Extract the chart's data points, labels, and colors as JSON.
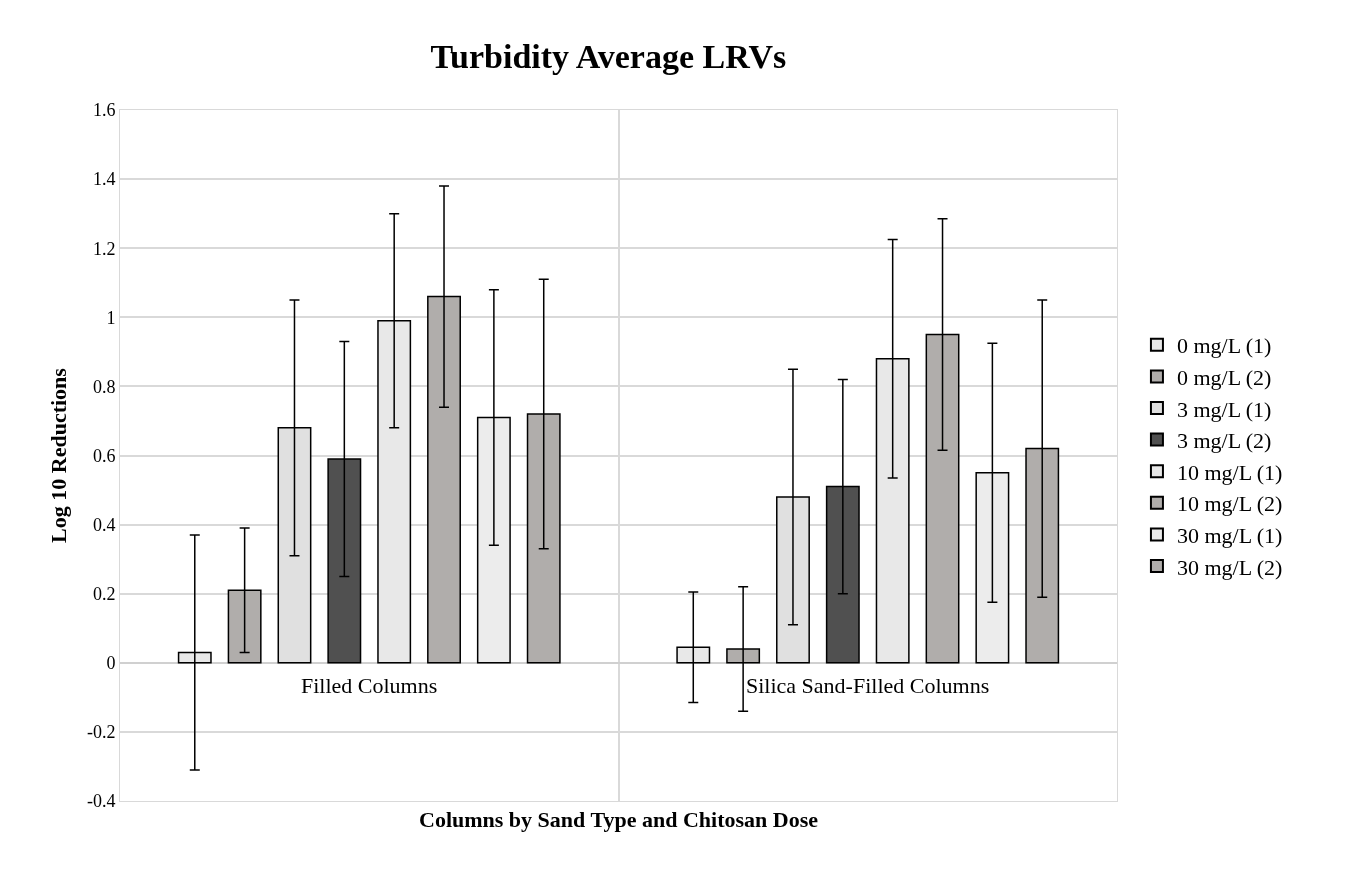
{
  "chart_data": {
    "type": "bar",
    "title": "Turbidity Average LRVs",
    "xlabel": "Columns by Sand Type and Chitosan Dose",
    "ylabel": "Log 10 Reductions",
    "categories": [
      "Filled Columns",
      "Silica Sand-Filled Columns"
    ],
    "series": [
      {
        "name": "0 mg/L (1)",
        "color": "#e8e8e8",
        "values": [
          0.03,
          0.045
        ],
        "errors": [
          0.34,
          0.16
        ]
      },
      {
        "name": "0 mg/L (2)",
        "color": "#b0adab",
        "values": [
          0.21,
          0.04
        ],
        "errors": [
          0.18,
          0.18
        ]
      },
      {
        "name": "3 mg/L (1)",
        "color": "#e0e0e0",
        "values": [
          0.68,
          0.48
        ],
        "errors": [
          0.37,
          0.37
        ]
      },
      {
        "name": "3 mg/L (2)",
        "color": "#505050",
        "values": [
          0.59,
          0.51
        ],
        "errors": [
          0.34,
          0.31
        ]
      },
      {
        "name": "10 mg/L (1)",
        "color": "#e8e8e8",
        "values": [
          0.99,
          0.88
        ],
        "errors": [
          0.31,
          0.345
        ]
      },
      {
        "name": "10 mg/L (2)",
        "color": "#b0adab",
        "values": [
          1.06,
          0.95
        ],
        "errors": [
          0.32,
          0.335
        ]
      },
      {
        "name": "30 mg/L (1)",
        "color": "#ececec",
        "values": [
          0.71,
          0.55
        ],
        "errors": [
          0.37,
          0.375
        ]
      },
      {
        "name": "30 mg/L (2)",
        "color": "#b0adab",
        "values": [
          0.72,
          0.62
        ],
        "errors": [
          0.39,
          0.43
        ]
      }
    ],
    "ylim": [
      -0.4,
      1.6
    ],
    "yticks": [
      -0.4,
      -0.2,
      0,
      0.2,
      0.4,
      0.6,
      0.8,
      1,
      1.2,
      1.4,
      1.6
    ],
    "grid": true,
    "legend": "right"
  }
}
